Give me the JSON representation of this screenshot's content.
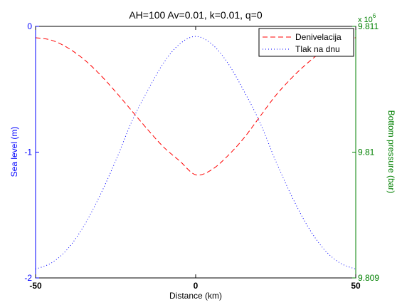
{
  "chart_data": {
    "type": "line",
    "title": "AH=100 Av=0.01, k=0.01, q=0",
    "xlabel": "Distance (km)",
    "xlim": [
      -50,
      50
    ],
    "xticks": [
      "-50",
      "0",
      "50"
    ],
    "y_left": {
      "label": "Sea level (m)",
      "lim": [
        -2,
        0
      ],
      "ticks": [
        "0",
        "-1",
        "-2"
      ],
      "color": "#0000ff"
    },
    "y_right": {
      "label": "Bottom pressure (bar)",
      "lim": [
        9.809,
        9.811
      ],
      "ticks": [
        "9.811",
        "9.81",
        "9.809"
      ],
      "multiplier": "x 10",
      "exponent": "6",
      "color": "#008000"
    },
    "legend_position": "top-right",
    "series": [
      {
        "name": "Denivelacija",
        "axis": "left",
        "color": "#ff0000",
        "style": "dashed",
        "x": [
          -50,
          -45,
          -40,
          -35,
          -30,
          -25,
          -20,
          -15,
          -10,
          -5,
          0,
          5,
          10,
          15,
          20,
          25,
          30,
          35,
          40,
          45,
          50
        ],
        "y": [
          -0.09,
          -0.11,
          -0.17,
          -0.26,
          -0.38,
          -0.52,
          -0.67,
          -0.82,
          -0.96,
          -1.07,
          -1.18,
          -1.14,
          -1.03,
          -0.89,
          -0.72,
          -0.55,
          -0.41,
          -0.29,
          -0.19,
          -0.12,
          -0.09
        ]
      },
      {
        "name": "Tlak na dnu",
        "axis": "right",
        "color": "#0000ff",
        "style": "dotted",
        "x": [
          -50,
          -45,
          -40,
          -35,
          -30,
          -25,
          -20,
          -15,
          -10,
          -5,
          0,
          5,
          10,
          15,
          20,
          25,
          30,
          35,
          40,
          45,
          50
        ],
        "y": [
          9.80907,
          9.80912,
          9.80923,
          9.80941,
          9.80965,
          9.80993,
          9.81024,
          9.81049,
          9.81071,
          9.81086,
          9.81092,
          9.81086,
          9.81071,
          9.81049,
          9.81024,
          9.80993,
          9.80965,
          9.80941,
          9.80923,
          9.80912,
          9.80907
        ]
      }
    ]
  }
}
